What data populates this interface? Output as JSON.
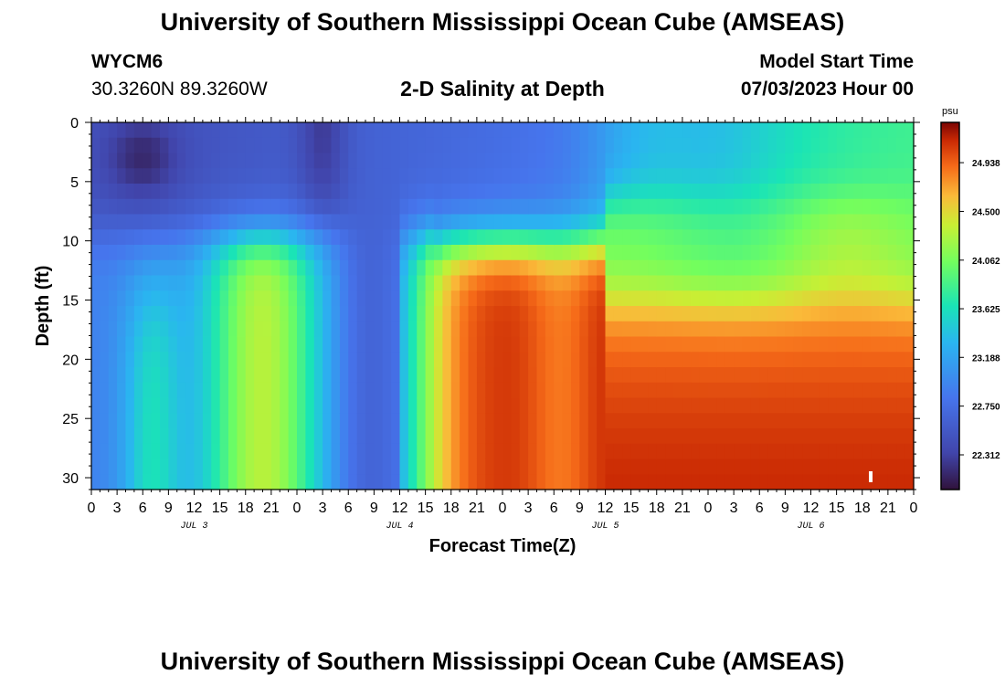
{
  "header": {
    "title": "University of Southern Mississippi Ocean Cube (AMSEAS)",
    "station_id": "WYCM6",
    "station_coords": "30.3260N  89.3260W",
    "product": "2-D Salinity at Depth",
    "model_start_label": "Model Start Time",
    "model_start_value": "07/03/2023 Hour 00"
  },
  "footer": {
    "title": "University of Southern Mississippi Ocean Cube (AMSEAS)"
  },
  "chart_data": {
    "type": "heatmap",
    "title": "2-D Salinity at Depth",
    "xlabel": "Forecast Time(Z)",
    "ylabel": "Depth (ft)",
    "units": "psu",
    "x_range_hours": [
      0,
      96
    ],
    "y_range_ft": [
      0,
      31
    ],
    "x_tick_labels": [
      "0",
      "3",
      "6",
      "9",
      "12",
      "15",
      "18",
      "21",
      "0",
      "3",
      "6",
      "9",
      "12",
      "15",
      "18",
      "21",
      "0",
      "3",
      "6",
      "9",
      "12",
      "15",
      "18",
      "21",
      "0",
      "3",
      "6",
      "9",
      "12",
      "15",
      "18",
      "21",
      "0"
    ],
    "y_ticks": [
      0,
      5,
      10,
      15,
      20,
      25,
      30
    ],
    "day_labels": [
      {
        "label": "JUL 3",
        "hour": 12
      },
      {
        "label": "JUL 4",
        "hour": 36
      },
      {
        "label": "JUL 5",
        "hour": 60
      },
      {
        "label": "JUL 6",
        "hour": 84
      }
    ],
    "colorbar_labels": [
      "24.938",
      "24.500",
      "24.062",
      "23.625",
      "23.188",
      "22.750",
      "22.312"
    ],
    "colorbar_range": [
      22.0,
      25.3
    ],
    "marker": {
      "hour": 91,
      "depth_ft": 30
    },
    "grid": false
  }
}
